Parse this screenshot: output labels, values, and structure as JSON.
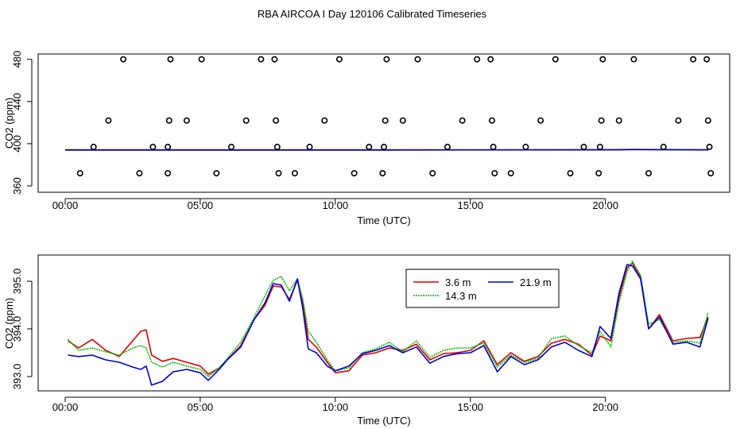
{
  "title": "RBA AIRCOA I  Day 120106  Calibrated Timeseries",
  "colors": {
    "s1": "#dd0000",
    "s2": "#00bb00",
    "s3": "#0000cc",
    "axis": "#000000"
  },
  "chart_data": [
    {
      "type": "scatter",
      "title": "",
      "xlabel": "Time (UTC)",
      "ylabel": "CO2 (ppm)",
      "xlim": [
        -1.0,
        24.6
      ],
      "ylim": [
        354,
        485
      ],
      "xticks": [
        0,
        5,
        10,
        15,
        20
      ],
      "xticklabels": [
        "00:00",
        "05:00",
        "10:00",
        "15:00",
        "20:00"
      ],
      "yticks": [
        360,
        400,
        440,
        480
      ],
      "yticklabels": [
        "360",
        "400",
        "440",
        "480"
      ],
      "points": [
        [
          0.55,
          372
        ],
        [
          1.05,
          397
        ],
        [
          1.6,
          422
        ],
        [
          2.15,
          480
        ],
        [
          2.75,
          372
        ],
        [
          3.25,
          397
        ],
        [
          3.8,
          372
        ],
        [
          3.8,
          397
        ],
        [
          3.85,
          422
        ],
        [
          3.9,
          480
        ],
        [
          4.5,
          422
        ],
        [
          5.05,
          480
        ],
        [
          5.6,
          372
        ],
        [
          6.15,
          397
        ],
        [
          6.7,
          422
        ],
        [
          7.25,
          480
        ],
        [
          7.75,
          480
        ],
        [
          7.8,
          422
        ],
        [
          7.85,
          397
        ],
        [
          7.9,
          372
        ],
        [
          8.5,
          372
        ],
        [
          9.05,
          397
        ],
        [
          9.6,
          422
        ],
        [
          10.15,
          480
        ],
        [
          10.7,
          372
        ],
        [
          11.25,
          397
        ],
        [
          11.75,
          372
        ],
        [
          11.8,
          397
        ],
        [
          11.85,
          422
        ],
        [
          11.9,
          480
        ],
        [
          12.5,
          422
        ],
        [
          13.05,
          480
        ],
        [
          13.6,
          372
        ],
        [
          14.15,
          397
        ],
        [
          14.7,
          422
        ],
        [
          15.25,
          480
        ],
        [
          15.75,
          480
        ],
        [
          15.8,
          422
        ],
        [
          15.85,
          397
        ],
        [
          15.9,
          372
        ],
        [
          16.5,
          372
        ],
        [
          17.05,
          397
        ],
        [
          17.6,
          422
        ],
        [
          18.15,
          480
        ],
        [
          18.7,
          372
        ],
        [
          19.2,
          397
        ],
        [
          19.75,
          372
        ],
        [
          19.8,
          397
        ],
        [
          19.85,
          422
        ],
        [
          19.9,
          480
        ],
        [
          20.5,
          422
        ],
        [
          21.05,
          480
        ],
        [
          21.6,
          372
        ],
        [
          22.15,
          397
        ],
        [
          22.7,
          422
        ],
        [
          23.25,
          480
        ],
        [
          23.75,
          480
        ],
        [
          23.8,
          422
        ],
        [
          23.85,
          397
        ],
        [
          23.9,
          372
        ]
      ],
      "series": [
        {
          "name": "3.6 m",
          "color": "#dd0000",
          "x": [
            0,
            6,
            12,
            18,
            20.5,
            21,
            23.8
          ],
          "values": [
            394.3,
            394.2,
            394.2,
            394.3,
            394.4,
            394.6,
            394.3
          ]
        },
        {
          "name": "14.3 m",
          "color": "#00bb00",
          "x": [
            0,
            6,
            12,
            18,
            20.5,
            21,
            23.8
          ],
          "values": [
            394.2,
            394.1,
            394.1,
            394.2,
            394.3,
            394.5,
            394.2
          ]
        },
        {
          "name": "21.9 m",
          "color": "#0000cc",
          "x": [
            0,
            6,
            12,
            18,
            20.5,
            21,
            23.8
          ],
          "values": [
            394.0,
            394.0,
            394.0,
            394.1,
            394.2,
            394.4,
            394.1
          ]
        }
      ]
    },
    {
      "type": "line",
      "title": "",
      "xlabel": "Time (UTC)",
      "ylabel": "CO2 (ppm)",
      "xlim": [
        -1.0,
        24.6
      ],
      "ylim": [
        392.7,
        395.55
      ],
      "xticks": [
        0,
        5,
        10,
        15,
        20
      ],
      "xticklabels": [
        "00:00",
        "05:00",
        "10:00",
        "15:00",
        "20:00"
      ],
      "yticks": [
        393.0,
        394.0,
        395.0
      ],
      "yticklabels": [
        "393.0",
        "394.0",
        "395.0"
      ],
      "legend": {
        "position": "top-center",
        "entries": [
          "3.6 m",
          "14.3 m",
          "21.9 m"
        ]
      },
      "x": [
        0.1,
        0.5,
        1.0,
        1.5,
        2.0,
        2.5,
        2.8,
        3.0,
        3.2,
        3.6,
        4.0,
        4.5,
        5.0,
        5.3,
        5.7,
        6.0,
        6.5,
        7.0,
        7.4,
        7.7,
        8.0,
        8.3,
        8.6,
        8.8,
        9.0,
        9.3,
        9.7,
        10.0,
        10.5,
        11.0,
        11.5,
        12.0,
        12.5,
        13.0,
        13.5,
        14.0,
        14.5,
        15.0,
        15.5,
        16.0,
        16.5,
        17.0,
        17.5,
        18.0,
        18.5,
        19.0,
        19.5,
        19.8,
        20.2,
        20.5,
        20.8,
        21.0,
        21.3,
        21.6,
        22.0,
        22.5,
        23.0,
        23.5,
        23.8
      ],
      "series": [
        {
          "name": "3.6 m",
          "color": "#dd0000",
          "values": [
            393.75,
            393.6,
            393.78,
            393.55,
            393.42,
            393.75,
            393.95,
            393.98,
            393.45,
            393.32,
            393.38,
            393.3,
            393.22,
            393.05,
            393.18,
            393.35,
            393.65,
            394.2,
            394.5,
            394.9,
            394.88,
            394.62,
            395.02,
            394.55,
            393.78,
            393.62,
            393.3,
            393.08,
            393.12,
            393.45,
            393.5,
            393.6,
            393.55,
            393.68,
            393.35,
            393.48,
            393.5,
            393.55,
            393.75,
            393.25,
            393.5,
            393.32,
            393.42,
            393.7,
            393.78,
            393.68,
            393.45,
            393.85,
            393.75,
            394.65,
            395.28,
            395.38,
            395.1,
            394.0,
            394.3,
            393.75,
            393.8,
            393.82,
            394.25
          ]
        },
        {
          "name": "14.3 m",
          "color": "#00bb00",
          "values": [
            393.78,
            393.55,
            393.6,
            393.52,
            393.45,
            393.6,
            393.65,
            393.6,
            393.3,
            393.2,
            393.3,
            393.22,
            393.15,
            393.0,
            393.18,
            393.38,
            393.72,
            394.25,
            394.7,
            395.02,
            395.1,
            394.8,
            395.05,
            394.62,
            393.95,
            393.72,
            393.35,
            393.12,
            393.18,
            393.5,
            393.58,
            393.72,
            393.52,
            393.75,
            393.4,
            393.55,
            393.6,
            393.6,
            393.7,
            393.2,
            393.45,
            393.3,
            393.38,
            393.8,
            393.85,
            393.65,
            393.5,
            393.95,
            393.62,
            394.55,
            395.2,
            395.42,
            395.12,
            394.1,
            394.2,
            393.72,
            393.75,
            393.7,
            394.35
          ]
        },
        {
          "name": "21.9 m",
          "color": "#0000cc",
          "values": [
            393.45,
            393.42,
            393.45,
            393.35,
            393.3,
            393.2,
            393.15,
            393.22,
            392.82,
            392.9,
            393.1,
            393.15,
            393.08,
            392.92,
            393.15,
            393.35,
            393.62,
            394.2,
            394.55,
            394.95,
            394.92,
            394.58,
            395.05,
            394.42,
            393.58,
            393.5,
            393.22,
            393.12,
            393.22,
            393.48,
            393.55,
            393.65,
            393.5,
            393.62,
            393.28,
            393.42,
            393.48,
            393.5,
            393.65,
            393.1,
            393.42,
            393.25,
            393.35,
            393.62,
            393.72,
            393.55,
            393.42,
            394.05,
            393.8,
            394.75,
            395.35,
            395.32,
            395.05,
            394.0,
            394.25,
            393.68,
            393.72,
            393.62,
            394.22
          ]
        }
      ]
    }
  ]
}
